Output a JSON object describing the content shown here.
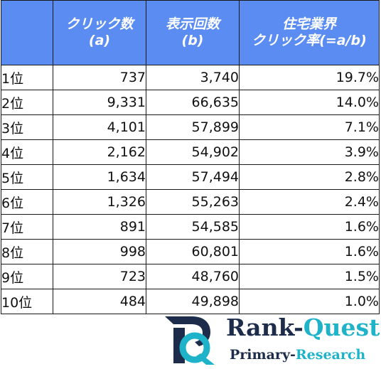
{
  "table": {
    "headers": [
      {
        "line1": "",
        "line2": ""
      },
      {
        "line1": "クリック数",
        "line2": "(a)"
      },
      {
        "line1": "表示回数",
        "line2": "(b)"
      },
      {
        "line1": "住宅業界",
        "line2": "クリック率(=a/b)"
      }
    ],
    "rows": [
      {
        "rank": "1位",
        "clicks": "737",
        "impressions": "3,740",
        "ctr": "19.7%"
      },
      {
        "rank": "2位",
        "clicks": "9,331",
        "impressions": "66,635",
        "ctr": "14.0%"
      },
      {
        "rank": "3位",
        "clicks": "4,101",
        "impressions": "57,899",
        "ctr": "7.1%"
      },
      {
        "rank": "4位",
        "clicks": "2,162",
        "impressions": "54,902",
        "ctr": "3.9%"
      },
      {
        "rank": "5位",
        "clicks": "1,634",
        "impressions": "57,494",
        "ctr": "2.8%"
      },
      {
        "rank": "6位",
        "clicks": "1,326",
        "impressions": "55,263",
        "ctr": "2.4%"
      },
      {
        "rank": "7位",
        "clicks": "891",
        "impressions": "54,585",
        "ctr": "1.6%"
      },
      {
        "rank": "8位",
        "clicks": "998",
        "impressions": "60,801",
        "ctr": "1.6%"
      },
      {
        "rank": "9位",
        "clicks": "723",
        "impressions": "48,760",
        "ctr": "1.5%"
      },
      {
        "rank": "10位",
        "clicks": "484",
        "impressions": "49,898",
        "ctr": "1.0%"
      }
    ]
  },
  "logo": {
    "name_part1": "Rank-",
    "name_part2": "Quest",
    "sub_part1": "Primary-",
    "sub_part2": "Research",
    "colors": {
      "navy": "#1d2c4a",
      "teal": "#1fb3c9"
    }
  },
  "colors": {
    "header_bg": "#5b8cf2",
    "header_text": "#ffffff",
    "border": "#1a1a1a"
  }
}
